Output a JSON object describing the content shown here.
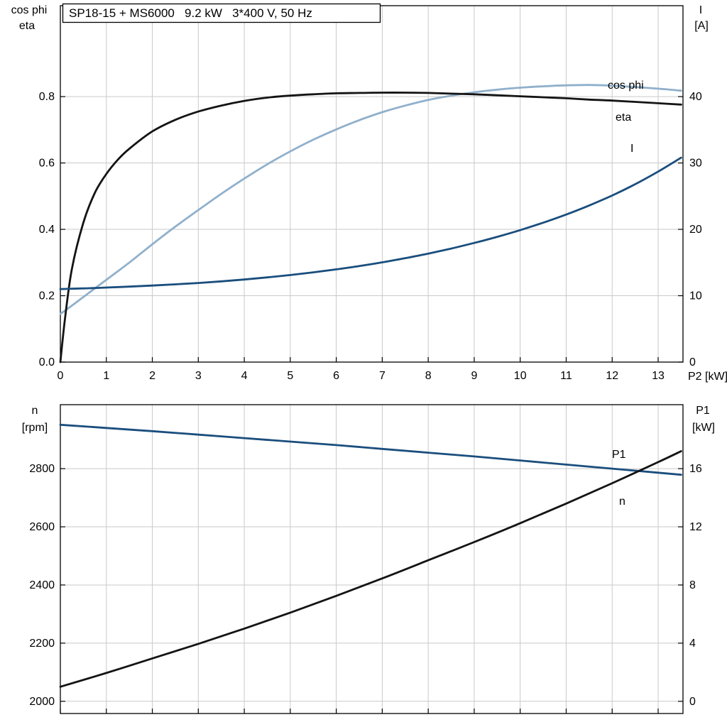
{
  "chart_data": [
    {
      "type": "line",
      "title": "SP18-15 + MS6000   9.2 kW   3*400 V, 50 Hz",
      "x_axis": {
        "label": "P2 [kW]",
        "range": [
          0,
          13.54
        ],
        "tick_values": [
          0,
          1,
          2,
          3,
          4,
          5,
          6,
          7,
          8,
          9,
          10,
          11,
          12,
          13
        ],
        "tick_labels": [
          "0",
          "1",
          "2",
          "3",
          "4",
          "5",
          "6",
          "7",
          "8",
          "9",
          "10",
          "11",
          "12",
          "13"
        ],
        "grid": true
      },
      "y_axis_left": {
        "label_lines": [
          "cos phi",
          "eta"
        ],
        "range": [
          0,
          1.074
        ],
        "tick_values": [
          0,
          0.2,
          0.4,
          0.6,
          0.8
        ],
        "tick_labels": [
          "0.0",
          "0.2",
          "0.4",
          "0.6",
          "0.8"
        ],
        "grid": true
      },
      "y_axis_right": {
        "label_lines": [
          "I",
          "[A]"
        ],
        "range": [
          0,
          53.7
        ],
        "tick_values": [
          0,
          10,
          20,
          30,
          40
        ],
        "tick_labels": [
          "0",
          "10",
          "20",
          "30",
          "40"
        ]
      },
      "series": [
        {
          "name": "cos phi",
          "axis": "left",
          "color": "#90b0cb",
          "x": [
            0,
            0.25,
            0.5,
            0.75,
            1,
            1.5,
            2,
            2.5,
            3,
            3.5,
            4,
            4.5,
            5,
            5.5,
            6,
            6.5,
            7,
            7.5,
            8,
            8.5,
            9,
            9.5,
            10,
            10.5,
            11,
            11.5,
            12,
            12.5,
            13,
            13.5
          ],
          "y": [
            0.145,
            0.17,
            0.196,
            0.222,
            0.248,
            0.3,
            0.355,
            0.408,
            0.458,
            0.507,
            0.553,
            0.596,
            0.635,
            0.67,
            0.701,
            0.729,
            0.753,
            0.773,
            0.79,
            0.803,
            0.813,
            0.821,
            0.827,
            0.831,
            0.834,
            0.835,
            0.833,
            0.829,
            0.824,
            0.818
          ]
        },
        {
          "name": "eta",
          "axis": "left",
          "color": "#141414",
          "x": [
            0,
            0.1,
            0.25,
            0.5,
            0.75,
            1,
            1.25,
            1.5,
            2,
            2.5,
            3,
            3.5,
            4,
            4.5,
            5,
            5.5,
            6,
            6.5,
            7,
            7.5,
            8,
            8.5,
            9,
            9.5,
            10,
            10.5,
            11,
            11.5,
            12,
            12.5,
            13,
            13.5
          ],
          "y": [
            0,
            0.13,
            0.28,
            0.42,
            0.51,
            0.567,
            0.61,
            0.643,
            0.695,
            0.73,
            0.755,
            0.773,
            0.787,
            0.797,
            0.803,
            0.807,
            0.81,
            0.811,
            0.812,
            0.812,
            0.811,
            0.809,
            0.807,
            0.804,
            0.801,
            0.798,
            0.795,
            0.791,
            0.788,
            0.784,
            0.78,
            0.776
          ]
        },
        {
          "name": "I",
          "axis": "right",
          "color": "#1a4e7d",
          "x": [
            0,
            0.25,
            0.5,
            0.75,
            1,
            1.5,
            2,
            2.5,
            3,
            3.5,
            4,
            4.5,
            5,
            5.5,
            6,
            6.5,
            7,
            7.5,
            8,
            8.5,
            9,
            9.5,
            10,
            10.5,
            11,
            11.5,
            12,
            12.5,
            13,
            13.5
          ],
          "y": [
            11.0,
            11.05,
            11.1,
            11.16,
            11.23,
            11.37,
            11.53,
            11.71,
            11.92,
            12.16,
            12.44,
            12.76,
            13.12,
            13.52,
            13.97,
            14.47,
            15.03,
            15.66,
            16.35,
            17.11,
            17.95,
            18.87,
            19.88,
            21.0,
            22.23,
            23.6,
            25.1,
            26.8,
            28.7,
            30.8
          ]
        }
      ]
    },
    {
      "type": "line",
      "title": "",
      "x_axis": {
        "label": "",
        "range": [
          0,
          13.54
        ],
        "tick_values": [
          0,
          1,
          2,
          3,
          4,
          5,
          6,
          7,
          8,
          9,
          10,
          11,
          12,
          13
        ],
        "tick_labels": [],
        "grid": true
      },
      "y_axis_left": {
        "label_lines": [
          "n",
          "[rpm]"
        ],
        "range": [
          1958,
          3020
        ],
        "tick_values": [
          2000,
          2200,
          2400,
          2600,
          2800
        ],
        "tick_labels": [
          "2000",
          "2200",
          "2400",
          "2600",
          "2800"
        ],
        "grid": true
      },
      "y_axis_right": {
        "label_lines": [
          "P1",
          "[kW]"
        ],
        "range": [
          -0.84,
          20.4
        ],
        "tick_values": [
          0,
          4,
          8,
          12,
          16
        ],
        "tick_labels": [
          "0",
          "4",
          "8",
          "12",
          "16"
        ]
      },
      "series": [
        {
          "name": "n",
          "axis": "left",
          "color": "#1a4e7d",
          "x": [
            0,
            1,
            2,
            3,
            4,
            5,
            6,
            7,
            8,
            9,
            10,
            11,
            12,
            13,
            13.5
          ],
          "y": [
            2951,
            2940,
            2929,
            2917,
            2905,
            2893,
            2881,
            2868,
            2855,
            2842,
            2828,
            2814,
            2800,
            2786,
            2779
          ]
        },
        {
          "name": "P1",
          "axis": "right",
          "color": "#141414",
          "x": [
            0,
            1,
            2,
            3,
            4,
            5,
            6,
            7,
            8,
            9,
            10,
            11,
            12,
            13,
            13.5
          ],
          "y": [
            1.0,
            1.95,
            2.95,
            3.95,
            5.0,
            6.1,
            7.25,
            8.45,
            9.7,
            10.95,
            12.25,
            13.6,
            15.0,
            16.45,
            17.2
          ]
        }
      ]
    }
  ]
}
